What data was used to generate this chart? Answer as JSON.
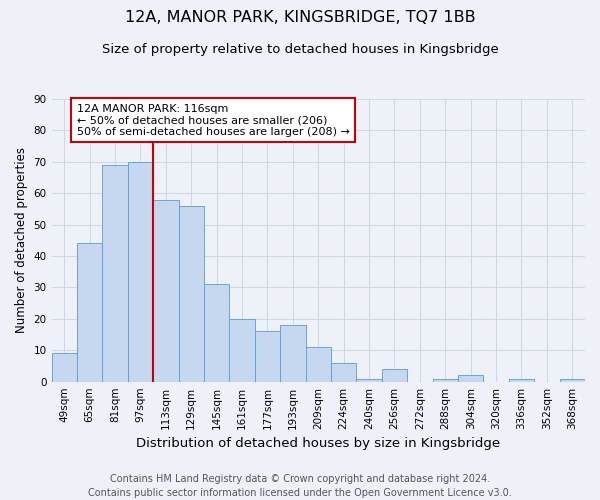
{
  "title": "12A, MANOR PARK, KINGSBRIDGE, TQ7 1BB",
  "subtitle": "Size of property relative to detached houses in Kingsbridge",
  "xlabel": "Distribution of detached houses by size in Kingsbridge",
  "ylabel": "Number of detached properties",
  "footer_line1": "Contains HM Land Registry data © Crown copyright and database right 2024.",
  "footer_line2": "Contains public sector information licensed under the Open Government Licence v3.0.",
  "bar_labels": [
    "49sqm",
    "65sqm",
    "81sqm",
    "97sqm",
    "113sqm",
    "129sqm",
    "145sqm",
    "161sqm",
    "177sqm",
    "193sqm",
    "209sqm",
    "224sqm",
    "240sqm",
    "256sqm",
    "272sqm",
    "288sqm",
    "304sqm",
    "320sqm",
    "336sqm",
    "352sqm",
    "368sqm"
  ],
  "bar_values": [
    9,
    44,
    69,
    70,
    58,
    56,
    31,
    20,
    16,
    18,
    11,
    6,
    1,
    4,
    0,
    1,
    2,
    0,
    1,
    0,
    1
  ],
  "bar_color": "#c5d8f0",
  "bar_edge_color": "#5b9bd5",
  "ylim": [
    0,
    90
  ],
  "yticks": [
    0,
    10,
    20,
    30,
    40,
    50,
    60,
    70,
    80,
    90
  ],
  "grid_color": "#cdd8e8",
  "bg_color": "#eef2f8",
  "red_line_x": 3.5,
  "annotation_title": "12A MANOR PARK: 116sqm",
  "annotation_line1": "← 50% of detached houses are smaller (206)",
  "annotation_line2": "50% of semi-detached houses are larger (208) →",
  "annotation_box_facecolor": "#ffffff",
  "annotation_box_edgecolor": "#cc0000",
  "red_line_color": "#cc0000",
  "title_fontsize": 11.5,
  "subtitle_fontsize": 9.5,
  "xlabel_fontsize": 9.5,
  "ylabel_fontsize": 8.5,
  "tick_fontsize": 7.5,
  "annotation_fontsize": 8.0,
  "footer_fontsize": 7.0
}
